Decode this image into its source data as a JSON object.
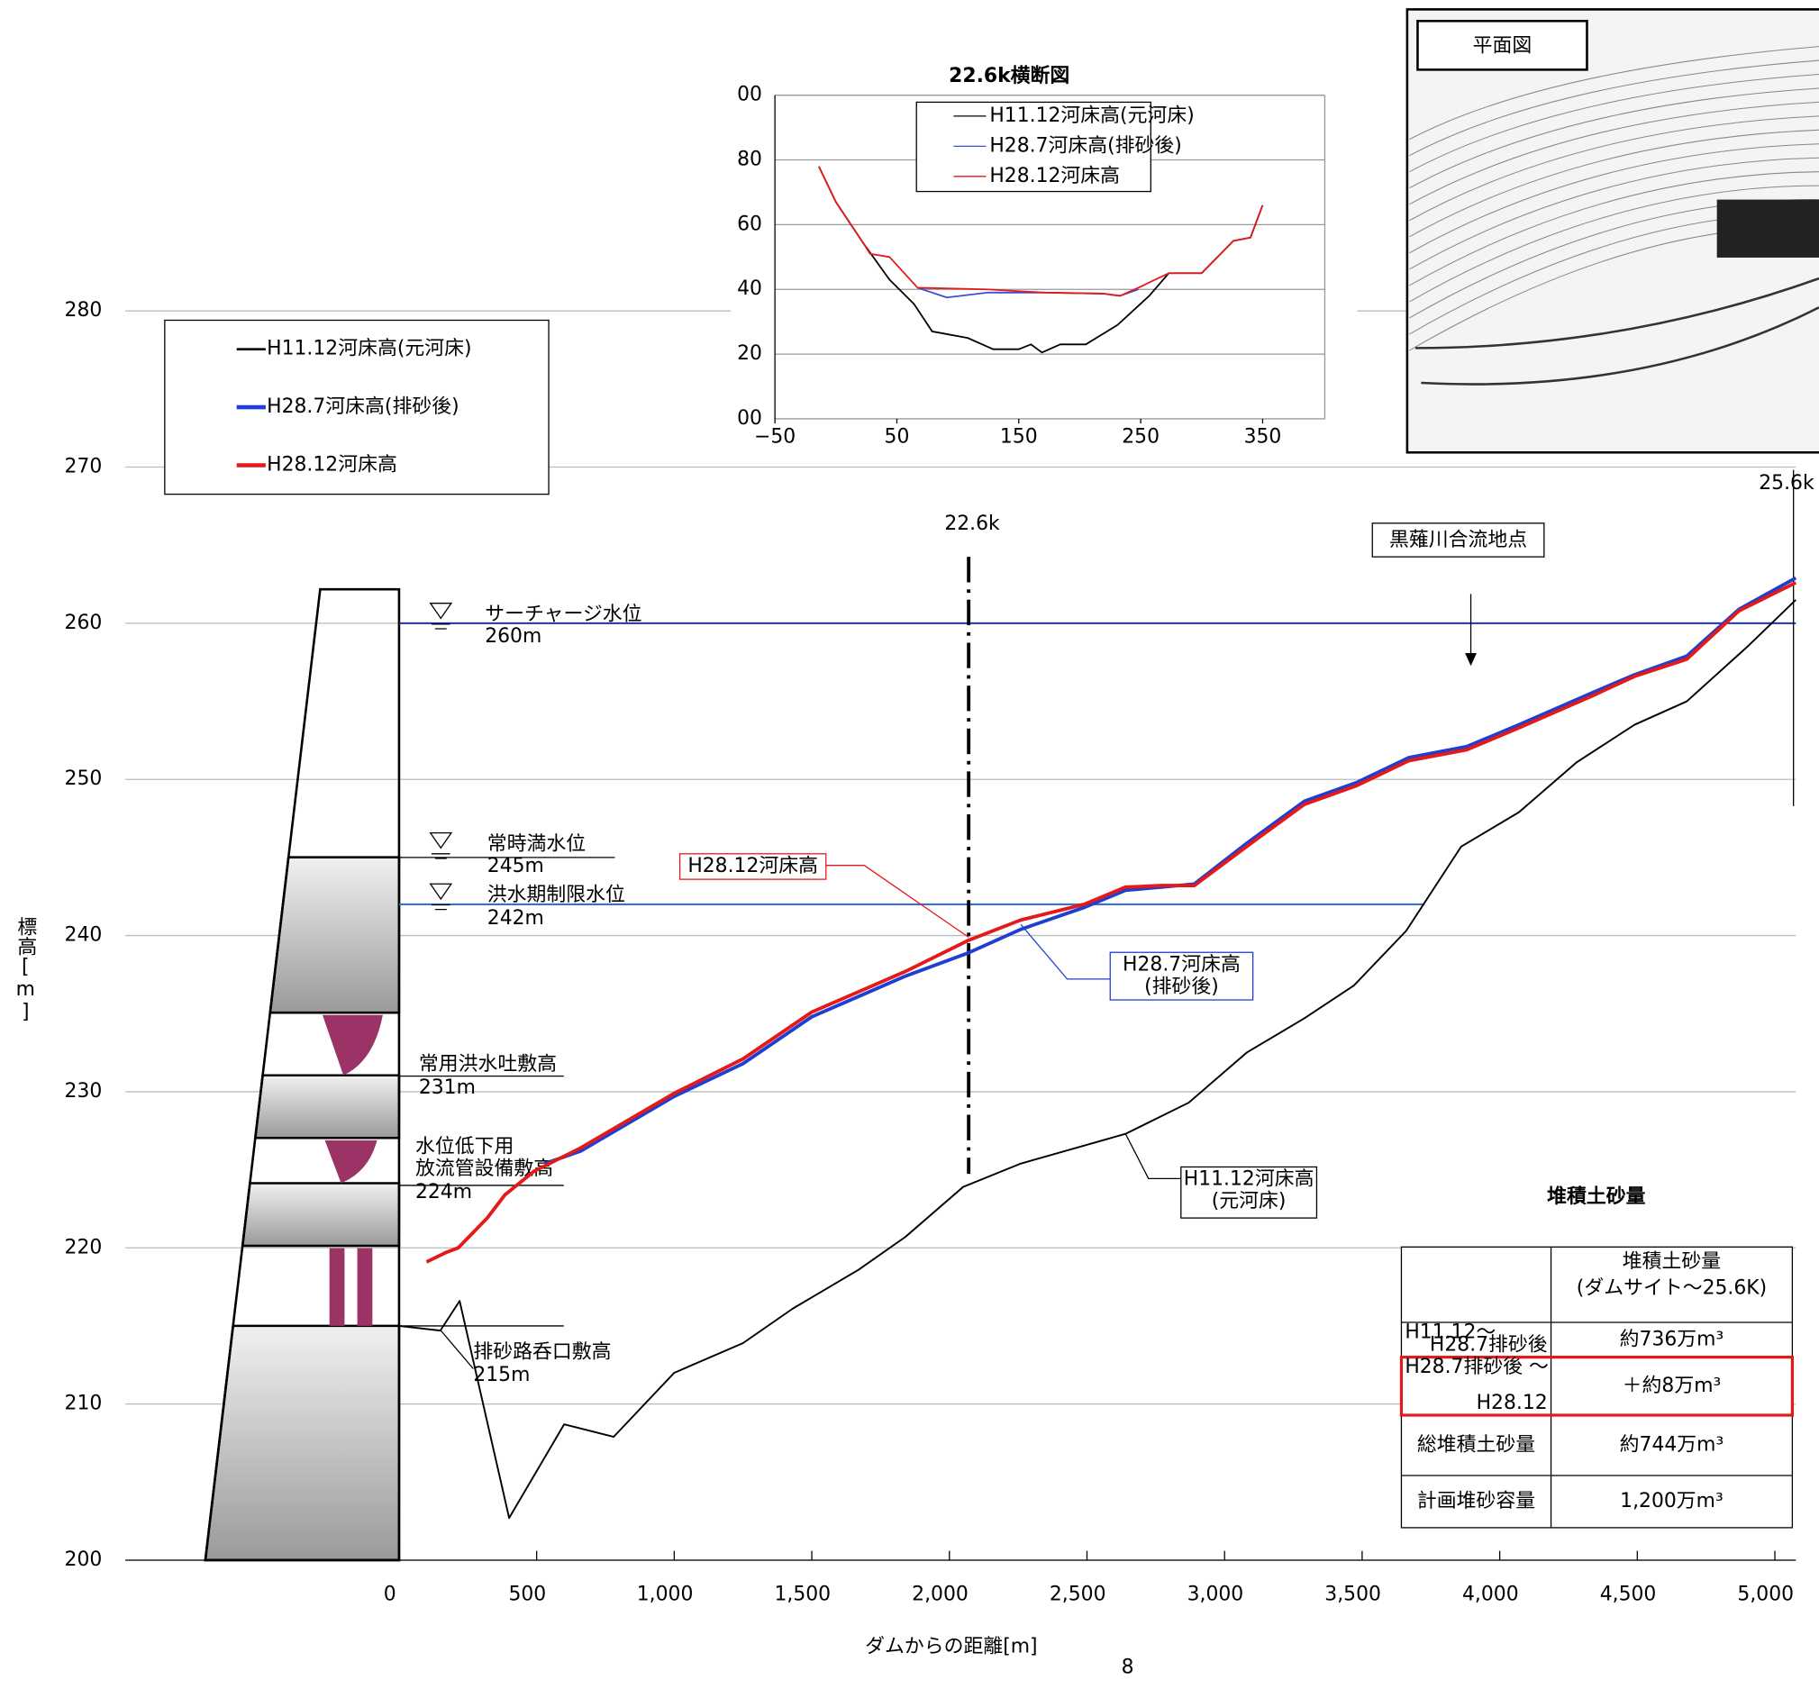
{
  "chart_data": [
    {
      "type": "line",
      "x_label": "ダムからの距離[m]",
      "y_label": "標高[m]",
      "xlim": [
        -995,
        5076
      ],
      "ylim": [
        200,
        280
      ],
      "xticks": [
        0,
        500,
        {
          "value": 1000,
          "label": "1,000"
        },
        {
          "value": 1500,
          "label": "1,500"
        },
        {
          "value": 2000,
          "label": "2,000"
        },
        {
          "value": 2500,
          "label": "2,500"
        },
        {
          "value": 3000,
          "label": "3,000"
        },
        {
          "value": 3500,
          "label": "3,500"
        },
        {
          "value": 4000,
          "label": "4,000"
        },
        {
          "value": 4500,
          "label": "4,500"
        },
        {
          "value": 5000,
          "label": "5,000"
        }
      ],
      "yticks": [
        200,
        210,
        220,
        230,
        240,
        250,
        260,
        270,
        280
      ],
      "grid": true,
      "series": [
        {
          "name": "H11.12河床高(元河床)",
          "callout": [
            "H11.12河床高",
            "(元河床)"
          ],
          "color": "#000000",
          "x": [
            0,
            150,
            220,
            400,
            600,
            780,
            1000,
            1250,
            1430,
            1670,
            1840,
            2050,
            2260,
            2640,
            2870,
            3080,
            3290,
            3470,
            3660,
            3860,
            4070,
            4280,
            4490,
            4680,
            4900,
            5076
          ],
          "values": [
            215.0,
            214.7,
            216.6,
            202.7,
            208.7,
            207.9,
            212.0,
            213.9,
            216.1,
            218.6,
            220.7,
            223.9,
            225.4,
            227.3,
            229.3,
            232.5,
            234.7,
            236.8,
            240.3,
            245.7,
            247.9,
            251.1,
            253.5,
            255.0,
            258.5,
            261.5
          ]
        },
        {
          "name": "H28.7河床高(排砂後)",
          "callout": [
            "H28.7河床高",
            "(排砂後)"
          ],
          "color": "#1f3fd0",
          "x": [
            530,
            660,
            1000,
            1250,
            1500,
            1670,
            1840,
            2070,
            2260,
            2490,
            2640,
            2770,
            2890,
            3080,
            3290,
            3480,
            3670,
            3880,
            4070,
            4330,
            4490,
            4680,
            4870,
            5076
          ],
          "values": [
            225.4,
            226.2,
            229.7,
            231.8,
            234.8,
            236.1,
            237.4,
            238.9,
            240.4,
            241.8,
            242.9,
            243.1,
            243.3,
            245.9,
            248.6,
            249.8,
            251.4,
            252.1,
            253.5,
            255.5,
            256.7,
            257.9,
            260.9,
            262.9
          ]
        },
        {
          "name": "H28.12河床高",
          "callout": [
            "H28.12河床高"
          ],
          "color": "#e41a1a",
          "x": [
            100,
            170,
            215,
            320,
            385,
            490,
            660,
            1000,
            1250,
            1500,
            1670,
            1840,
            2070,
            2260,
            2490,
            2640,
            2770,
            2890,
            3080,
            3290,
            3480,
            3670,
            3880,
            4070,
            4330,
            4490,
            4680,
            4870,
            5076
          ],
          "values": [
            219.1,
            219.7,
            220.0,
            221.9,
            223.4,
            224.9,
            226.4,
            229.9,
            232.1,
            235.1,
            236.4,
            237.7,
            239.7,
            241.0,
            242.0,
            243.1,
            243.2,
            243.2,
            245.7,
            248.4,
            249.6,
            251.2,
            251.9,
            253.3,
            255.3,
            256.6,
            257.7,
            260.8,
            262.6
          ]
        }
      ],
      "levels": [
        {
          "name": [
            "サーチャージ水位"
          ],
          "value": 260,
          "label": "260m",
          "x_end": 5076,
          "color": "#1f2fbf"
        },
        {
          "name": [
            "常時満水位"
          ],
          "value": 245,
          "label": "245m"
        },
        {
          "name": [
            "洪水期制限水位"
          ],
          "value": 242,
          "label": "242m",
          "x_end": 3727,
          "color": "#3a6fd8"
        },
        {
          "name": [
            "常用洪水吐敷高"
          ],
          "value": 231,
          "label": "231m"
        },
        {
          "name": [
            "水位低下用",
            "放流管設備敷高"
          ],
          "value": 224,
          "label": "224m"
        },
        {
          "name": [
            "排砂路呑口敷高"
          ],
          "value": 215,
          "label": "215m"
        }
      ],
      "sections": [
        {
          "label": "22.6k",
          "x": 2070
        },
        {
          "label": "25.6k",
          "x": 5076
        }
      ],
      "confluence": {
        "label": "黒薙川合流地点",
        "x": 3895
      }
    },
    {
      "type": "line",
      "title": "22.6k横断図",
      "xlim": [
        -50,
        401
      ],
      "ylim": [
        0,
        100
      ],
      "xticks": [
        {
          "value": -50,
          "label": "−50"
        },
        50,
        150,
        250,
        350
      ],
      "yticks": [
        {
          "value": 0,
          "label": "00"
        },
        20,
        40,
        60,
        80,
        {
          "value": 100,
          "label": "00"
        }
      ],
      "grid": true,
      "series": [
        {
          "name": "H11.12河床高(元河床)",
          "color": "#000000",
          "x": [
            -14,
            0,
            23,
            44,
            64,
            79,
            108,
            129,
            150,
            160,
            169,
            184,
            205,
            231,
            257,
            273,
            300,
            326,
            340,
            350
          ],
          "values": [
            78,
            67,
            54,
            43,
            35.5,
            27,
            25,
            21.5,
            21.5,
            23,
            20.5,
            23,
            23,
            29,
            38,
            45,
            45,
            55,
            56,
            66
          ]
        },
        {
          "name": "H28.7河床高(排砂後)",
          "color": "#3a4fd8",
          "x": [
            67,
            91,
            124,
            171,
            219,
            233,
            248
          ],
          "values": [
            40.5,
            37.5,
            39,
            39,
            38.7,
            38,
            40
          ]
        },
        {
          "name": "H28.12河床高",
          "color": "#e41a1a",
          "x": [
            -14,
            0,
            23,
            28,
            44,
            67,
            124,
            171,
            219,
            233,
            248,
            273,
            300,
            326,
            340,
            350
          ],
          "values": [
            78,
            67,
            54,
            51,
            50,
            40.5,
            40,
            39,
            38.7,
            38,
            40.5,
            45,
            45,
            55,
            56,
            66
          ]
        }
      ]
    }
  ],
  "plan_view": {
    "title": "平面図"
  },
  "table": {
    "title": "堆積土砂量",
    "header": [
      "堆積土砂量",
      "(ダムサイト～25.6K)"
    ],
    "rows": [
      {
        "period": [
          "H11.12～",
          "H28.7排砂後"
        ],
        "amount": "約736万m³"
      },
      {
        "period": [
          "H28.7排砂後 ～",
          "H28.12"
        ],
        "amount": "＋約8万m³"
      },
      {
        "period": [
          "総堆積土砂量"
        ],
        "amount": "約744万m³"
      },
      {
        "period": [
          "計画堆砂容量"
        ],
        "amount": "1,200万m³"
      }
    ]
  },
  "page_number": 8
}
